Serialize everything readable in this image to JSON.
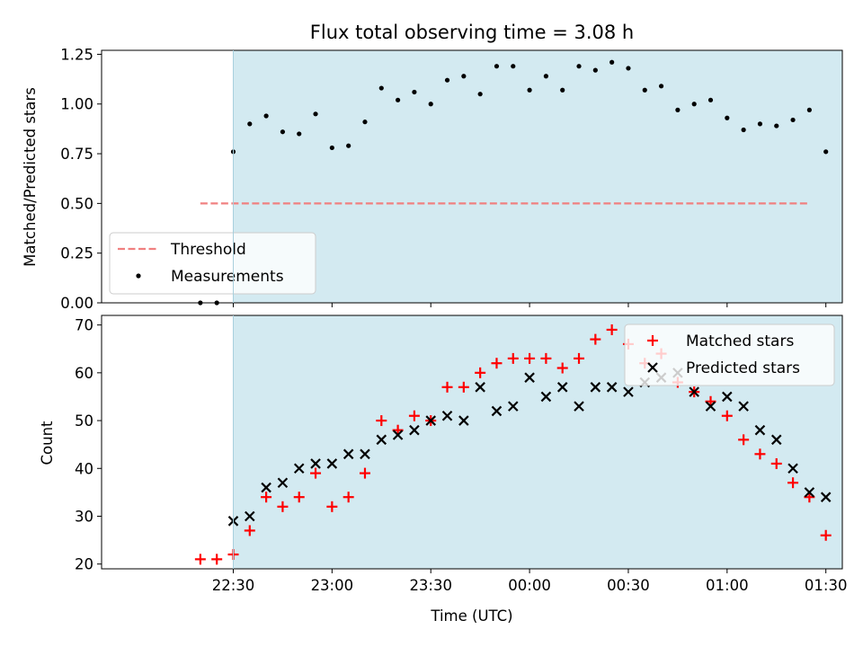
{
  "chart_data": [
    {
      "type": "scatter",
      "title": "Flux total observing time = 3.08 h",
      "ylabel": "Matched/Predicted stars",
      "xlabel": "",
      "x_unit": "minutes from 22:00 UTC (shared axis, ticks labeled by clock time)",
      "xlim": [
        -10,
        215
      ],
      "ylim": [
        0,
        1.27
      ],
      "yticks": [
        0,
        0.25,
        0.5,
        0.75,
        1.0,
        1.25
      ],
      "ytick_labels": [
        "0.00",
        "0.25",
        "0.50",
        "0.75",
        "1.00",
        "1.25"
      ],
      "grid": false,
      "shaded_region": {
        "x_start": 30,
        "x_end": 215,
        "color": "#d3eaf1"
      },
      "threshold": {
        "name": "Threshold",
        "y": 0.5,
        "x_start": 20,
        "x_end": 205,
        "color": "#f08080"
      },
      "legend": {
        "position": "bottom-left",
        "entries": [
          "Threshold",
          "Measurements"
        ]
      },
      "series": [
        {
          "name": "Measurements",
          "marker": "dot",
          "color": "#000000",
          "x": [
            20,
            25,
            30,
            35,
            40,
            45,
            50,
            55,
            60,
            65,
            70,
            75,
            80,
            85,
            90,
            95,
            100,
            105,
            110,
            115,
            120,
            125,
            130,
            135,
            140,
            145,
            150,
            155,
            160,
            165,
            170,
            175,
            180,
            185,
            190,
            195,
            200,
            205,
            210
          ],
          "y": [
            0.0,
            0.0,
            0.76,
            0.9,
            0.94,
            0.86,
            0.85,
            0.95,
            0.78,
            0.79,
            0.91,
            1.08,
            1.02,
            1.06,
            1.0,
            1.12,
            1.14,
            1.05,
            1.19,
            1.19,
            1.07,
            1.14,
            1.07,
            1.19,
            1.17,
            1.21,
            1.18,
            1.07,
            1.09,
            0.97,
            1.0,
            1.02,
            0.93,
            0.87,
            0.9,
            0.89,
            0.92,
            0.97,
            0.76
          ]
        }
      ]
    },
    {
      "type": "scatter",
      "title": "",
      "ylabel": "Count",
      "xlabel": "Time (UTC)",
      "xlim": [
        -10,
        215
      ],
      "ylim": [
        19,
        72
      ],
      "yticks": [
        20,
        30,
        40,
        50,
        60,
        70
      ],
      "ytick_labels": [
        "20",
        "30",
        "40",
        "50",
        "60",
        "70"
      ],
      "xticks": [
        30,
        60,
        90,
        120,
        150,
        180,
        210
      ],
      "xtick_labels": [
        "22:30",
        "23:00",
        "23:30",
        "00:00",
        "00:30",
        "01:00",
        "01:30"
      ],
      "grid": false,
      "shaded_region": {
        "x_start": 30,
        "x_end": 215,
        "color": "#d3eaf1"
      },
      "legend": {
        "position": "top-right",
        "entries": [
          "Matched stars",
          "Predicted stars"
        ]
      },
      "series": [
        {
          "name": "Matched stars",
          "marker": "plus",
          "color": "#ff0000",
          "x": [
            20,
            25,
            30,
            35,
            40,
            45,
            50,
            55,
            60,
            65,
            70,
            75,
            80,
            85,
            90,
            95,
            100,
            105,
            110,
            115,
            120,
            125,
            130,
            135,
            140,
            145,
            150,
            155,
            160,
            165,
            170,
            175,
            180,
            185,
            190,
            195,
            200,
            205,
            210
          ],
          "y": [
            21,
            21,
            22,
            27,
            34,
            32,
            34,
            39,
            32,
            34,
            39,
            50,
            48,
            51,
            50,
            57,
            57,
            60,
            62,
            63,
            63,
            63,
            61,
            63,
            67,
            69,
            66,
            62,
            64,
            58,
            56,
            54,
            51,
            46,
            43,
            41,
            37,
            34,
            26
          ]
        },
        {
          "name": "Predicted stars",
          "marker": "x",
          "color": "#000000",
          "x": [
            30,
            35,
            40,
            45,
            50,
            55,
            60,
            65,
            70,
            75,
            80,
            85,
            90,
            95,
            100,
            105,
            110,
            115,
            120,
            125,
            130,
            135,
            140,
            145,
            150,
            155,
            160,
            165,
            170,
            175,
            180,
            185,
            190,
            195,
            200,
            205,
            210
          ],
          "y": [
            29,
            30,
            36,
            37,
            40,
            41,
            41,
            43,
            43,
            46,
            47,
            48,
            50,
            51,
            50,
            57,
            52,
            53,
            59,
            55,
            57,
            53,
            57,
            57,
            56,
            58,
            59,
            60,
            56,
            53,
            55,
            53,
            48,
            46,
            40,
            35,
            34
          ]
        }
      ]
    }
  ]
}
